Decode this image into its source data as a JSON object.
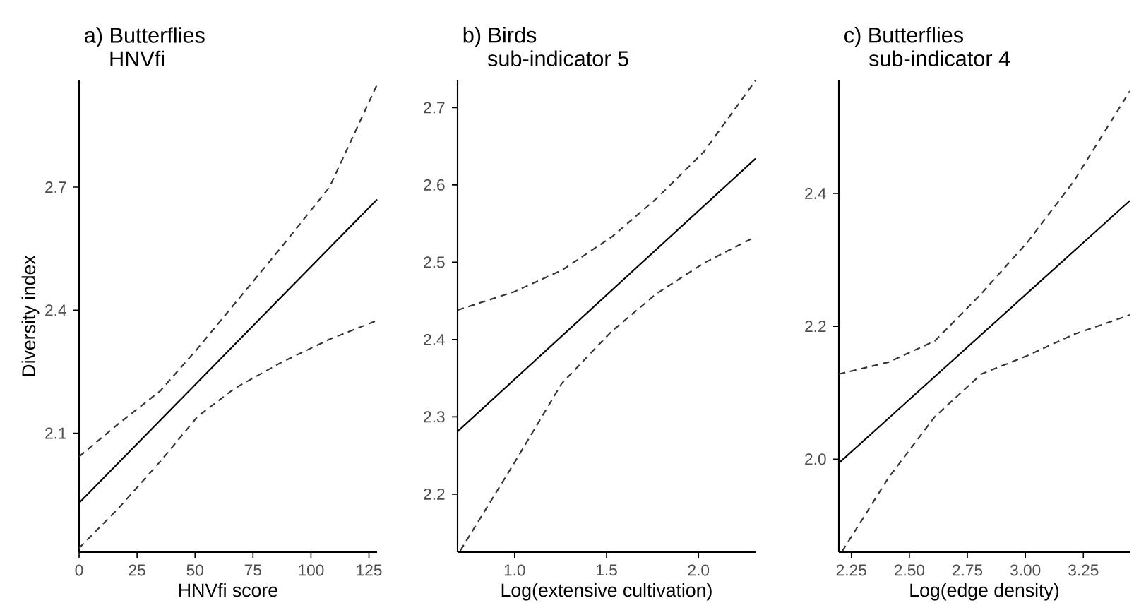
{
  "chart_data": [
    {
      "type": "line",
      "title": "a) Butterflies",
      "subtitle": "HNVfi",
      "xlabel": "HNVfi score",
      "ylabel": "Diversity index",
      "xlim": [
        0,
        128.5
      ],
      "ylim": [
        1.81,
        2.96
      ],
      "xticks": [
        0,
        25,
        50,
        75,
        100,
        125
      ],
      "yticks": [
        2.1,
        2.4,
        2.7
      ],
      "series": [
        {
          "color": "#000000",
          "line_style": "solid",
          "x": [
            0,
            128.5
          ],
          "values": [
            1.93,
            2.67
          ]
        },
        {
          "color": "#333333",
          "line_style": "dashed",
          "x": [
            0,
            17,
            35,
            51,
            67,
            87,
            108,
            128.5
          ],
          "values": [
            2.043,
            2.123,
            2.203,
            2.306,
            2.415,
            2.552,
            2.7,
            2.95
          ]
        },
        {
          "color": "#333333",
          "line_style": "dashed",
          "x": [
            0,
            17,
            35,
            51,
            67,
            87,
            108,
            128.5
          ],
          "values": [
            1.82,
            1.917,
            2.031,
            2.14,
            2.209,
            2.272,
            2.329,
            2.375
          ]
        }
      ]
    },
    {
      "type": "line",
      "title": "b) Birds",
      "subtitle": "sub-indicator 5",
      "xlabel": "Log(extensive cultivation)",
      "xlim": [
        0.69,
        2.31
      ],
      "ylim": [
        2.125,
        2.735
      ],
      "xticks": [
        {
          "value": 1,
          "label": "1.0"
        },
        1.5,
        {
          "value": 2,
          "label": "2.0"
        }
      ],
      "yticks": [
        2.2,
        2.3,
        2.4,
        2.5,
        2.6,
        2.7
      ],
      "series": [
        {
          "color": "#000000",
          "line_style": "solid",
          "x": [
            0.69,
            2.31
          ],
          "values": [
            2.281,
            2.634
          ]
        },
        {
          "color": "#333333",
          "line_style": "dashed",
          "x": [
            0.69,
            1.0,
            1.26,
            1.53,
            1.77,
            2.03,
            2.31
          ],
          "values": [
            2.438,
            2.462,
            2.49,
            2.533,
            2.582,
            2.643,
            2.735
          ]
        },
        {
          "color": "#333333",
          "line_style": "dashed",
          "x": [
            0.705,
            1.0,
            1.256,
            1.525,
            1.77,
            2.03,
            2.31
          ],
          "values": [
            2.127,
            2.241,
            2.343,
            2.41,
            2.459,
            2.499,
            2.533
          ]
        }
      ]
    },
    {
      "type": "line",
      "title": "c) Butterflies",
      "subtitle": "sub-indicator 4",
      "xlabel": "Log(edge density)",
      "xlim": [
        2.196,
        3.45
      ],
      "ylim": [
        1.86,
        2.57
      ],
      "xticks": [
        2.25,
        {
          "value": 2.5,
          "label": "2.50"
        },
        2.75,
        {
          "value": 3,
          "label": "3.00"
        },
        3.25
      ],
      "yticks": [
        {
          "value": 2,
          "label": "2.0"
        },
        2.2,
        2.4
      ],
      "series": [
        {
          "color": "#000000",
          "line_style": "solid",
          "x": [
            2.196,
            3.45
          ],
          "values": [
            1.994,
            2.389
          ]
        },
        {
          "color": "#333333",
          "line_style": "dashed",
          "x": [
            2.196,
            2.41,
            2.61,
            2.81,
            3.01,
            3.21,
            3.45
          ],
          "values": [
            2.128,
            2.146,
            2.178,
            2.249,
            2.327,
            2.419,
            2.554
          ]
        },
        {
          "color": "#333333",
          "line_style": "dashed",
          "x": [
            2.21,
            2.41,
            2.61,
            2.81,
            3.01,
            3.21,
            3.45
          ],
          "values": [
            1.861,
            1.972,
            2.064,
            2.128,
            2.156,
            2.188,
            2.217
          ]
        }
      ]
    }
  ]
}
